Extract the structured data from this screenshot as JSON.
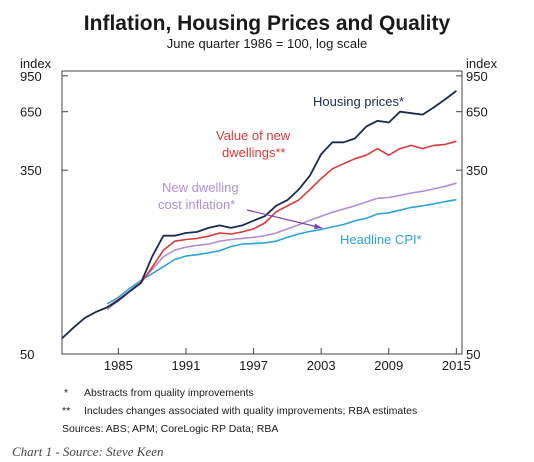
{
  "chart_data": {
    "type": "line",
    "title": "Inflation, Housing Prices and Quality",
    "subtitle": "June quarter 1986 = 100, log scale",
    "ylabel_left": "index",
    "ylabel_right": "index",
    "y_scale": "log",
    "ylim": [
      50,
      1000
    ],
    "xlim": [
      1980,
      2015.5
    ],
    "x_ticks": [
      1985,
      1991,
      1997,
      2003,
      2009,
      2015
    ],
    "y_ticks": [
      50,
      350,
      650,
      950
    ],
    "grid": false,
    "legend": "inline labels",
    "series": [
      {
        "name": "Housing prices*",
        "color": "#1c2b4a",
        "x": [
          1980,
          1981,
          1982,
          1983,
          1984,
          1985,
          1986,
          1987,
          1988,
          1989,
          1990,
          1991,
          1992,
          1993,
          1994,
          1995,
          1996,
          1997,
          1998,
          1999,
          2000,
          2001,
          2002,
          2003,
          2004,
          2005,
          2006,
          2007,
          2008,
          2009,
          2010,
          2011,
          2012,
          2013,
          2014,
          2015
        ],
        "values": [
          59,
          66,
          73,
          78,
          82,
          88,
          97,
          106,
          140,
          175,
          175,
          180,
          182,
          190,
          195,
          190,
          195,
          205,
          215,
          240,
          255,
          285,
          330,
          415,
          470,
          470,
          490,
          555,
          590,
          580,
          650,
          640,
          630,
          680,
          740,
          810
        ]
      },
      {
        "name": "Value of new dwellings**",
        "color": "#d63a3a",
        "x": [
          1984,
          1985,
          1986,
          1987,
          1988,
          1989,
          1990,
          1991,
          1992,
          1993,
          1994,
          1995,
          1996,
          1997,
          1998,
          1999,
          2000,
          2001,
          2002,
          2003,
          2004,
          2005,
          2006,
          2007,
          2008,
          2009,
          2010,
          2011,
          2012,
          2013,
          2014,
          2015
        ],
        "values": [
          82,
          89,
          97,
          106,
          125,
          150,
          165,
          168,
          170,
          174,
          180,
          178,
          182,
          188,
          200,
          225,
          240,
          255,
          285,
          320,
          355,
          375,
          395,
          410,
          440,
          410,
          440,
          455,
          440,
          455,
          460,
          475
        ]
      },
      {
        "name": "New dwelling cost inflation*",
        "color": "#b38fcf",
        "x": [
          1984,
          1985,
          1986,
          1987,
          1988,
          1989,
          1990,
          1991,
          1992,
          1993,
          1994,
          1995,
          1996,
          1997,
          1998,
          1999,
          2000,
          2001,
          2002,
          2003,
          2004,
          2005,
          2006,
          2007,
          2008,
          2009,
          2010,
          2011,
          2012,
          2013,
          2014,
          2015
        ],
        "values": [
          80,
          88,
          97,
          108,
          122,
          140,
          150,
          155,
          158,
          160,
          165,
          168,
          170,
          172,
          175,
          180,
          188,
          196,
          206,
          215,
          224,
          232,
          240,
          250,
          260,
          262,
          268,
          275,
          280,
          287,
          295,
          305
        ]
      },
      {
        "name": "Headline CPI*",
        "color": "#2fa3d6",
        "x": [
          1984,
          1985,
          1986,
          1987,
          1988,
          1989,
          1990,
          1991,
          1992,
          1993,
          1994,
          1995,
          1996,
          1997,
          1998,
          1999,
          2000,
          2001,
          2002,
          2003,
          2004,
          2005,
          2006,
          2007,
          2008,
          2009,
          2010,
          2011,
          2012,
          2013,
          2014,
          2015
        ],
        "values": [
          85,
          91,
          100,
          109,
          117,
          126,
          136,
          141,
          143,
          146,
          149,
          156,
          160,
          161,
          162,
          165,
          172,
          178,
          183,
          187,
          192,
          197,
          205,
          210,
          220,
          223,
          229,
          236,
          240,
          245,
          251,
          256
        ]
      }
    ]
  },
  "series_labels": {
    "housing": "Housing prices*",
    "value_line1": "Value of new",
    "value_line2": "dwellings**",
    "cost_line1": "New dwelling",
    "cost_line2": "cost inflation*",
    "cpi": "Headline CPI*"
  },
  "notes": [
    {
      "marker": "*",
      "text": "Abstracts from quality improvements"
    },
    {
      "marker": "**",
      "text": "Includes changes associated with quality improvements; RBA estimates"
    }
  ],
  "sources": "Sources:  ABS; APM; CoreLogic RP Data; RBA",
  "caption": "Chart 1 - Source: Steve Keen"
}
